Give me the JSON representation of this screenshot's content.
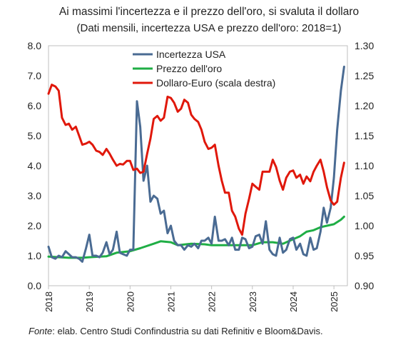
{
  "title": "Ai massimi l'incertezza e il prezzo dell'oro, si svaluta il dollaro",
  "subtitle": "(Dati mensili, incertezza USA e prezzo dell'oro: 2018=1)",
  "source": {
    "label": "Fonte",
    "text": ": elab. Centro Studi Confindustria su dati Refinitiv e Bloom&Davis."
  },
  "chart_data": {
    "type": "line",
    "x_ticks": [
      "2018",
      "2019",
      "2020",
      "2021",
      "2022",
      "2023",
      "2024",
      "2025"
    ],
    "x_range": [
      2018.0,
      2025.33
    ],
    "y_left": {
      "ylim": [
        0.0,
        8.0
      ],
      "ticks": [
        "0.0",
        "1.0",
        "2.0",
        "3.0",
        "4.0",
        "5.0",
        "6.0",
        "7.0",
        "8.0"
      ]
    },
    "y_right": {
      "ylim": [
        0.9,
        1.3
      ],
      "ticks": [
        "0.90",
        "0.95",
        "1.00",
        "1.05",
        "1.10",
        "1.15",
        "1.20",
        "1.25",
        "1.30"
      ]
    },
    "grid": false,
    "legend_position": "top-center",
    "series": [
      {
        "name": "Incertezza USA",
        "axis": "left",
        "color": "#4a6b93",
        "x": [
          2018.0,
          2018.08,
          2018.17,
          2018.25,
          2018.33,
          2018.42,
          2018.5,
          2018.58,
          2018.67,
          2018.75,
          2018.83,
          2018.92,
          2019.0,
          2019.08,
          2019.17,
          2019.25,
          2019.33,
          2019.42,
          2019.5,
          2019.58,
          2019.67,
          2019.75,
          2019.83,
          2019.92,
          2020.0,
          2020.08,
          2020.17,
          2020.25,
          2020.33,
          2020.42,
          2020.5,
          2020.58,
          2020.67,
          2020.75,
          2020.83,
          2020.92,
          2021.0,
          2021.08,
          2021.17,
          2021.25,
          2021.33,
          2021.42,
          2021.5,
          2021.58,
          2021.67,
          2021.75,
          2021.83,
          2021.92,
          2022.0,
          2022.08,
          2022.17,
          2022.25,
          2022.33,
          2022.42,
          2022.5,
          2022.58,
          2022.67,
          2022.75,
          2022.83,
          2022.92,
          2023.0,
          2023.08,
          2023.17,
          2023.25,
          2023.33,
          2023.42,
          2023.5,
          2023.58,
          2023.67,
          2023.75,
          2023.83,
          2023.92,
          2024.0,
          2024.08,
          2024.17,
          2024.25,
          2024.33,
          2024.42,
          2024.5,
          2024.58,
          2024.67,
          2024.75,
          2024.83,
          2024.92,
          2025.0,
          2025.08,
          2025.17,
          2025.25
        ],
        "values": [
          1.3,
          0.95,
          0.9,
          1.0,
          0.95,
          1.15,
          1.05,
          0.95,
          0.95,
          0.9,
          0.8,
          1.25,
          1.7,
          1.0,
          1.0,
          0.95,
          1.1,
          1.45,
          1.05,
          1.2,
          1.8,
          1.1,
          1.05,
          1.0,
          1.2,
          1.2,
          6.15,
          5.3,
          3.5,
          4.0,
          2.8,
          3.0,
          2.9,
          2.4,
          2.5,
          1.75,
          2.0,
          1.5,
          1.35,
          1.35,
          1.2,
          1.35,
          1.3,
          1.4,
          1.25,
          1.5,
          1.5,
          1.6,
          1.4,
          2.3,
          1.5,
          1.5,
          1.55,
          1.35,
          1.6,
          1.2,
          1.2,
          1.6,
          1.55,
          1.25,
          1.3,
          1.65,
          1.7,
          1.4,
          2.15,
          1.2,
          1.05,
          1.0,
          1.6,
          1.1,
          1.2,
          1.55,
          1.6,
          1.2,
          1.4,
          1.05,
          1.0,
          1.6,
          1.2,
          1.25,
          1.8,
          2.6,
          2.1,
          2.6,
          3.6,
          5.2,
          6.5,
          7.3
        ]
      },
      {
        "name": "Prezzo dell'oro",
        "axis": "left",
        "color": "#1fae45",
        "x": [
          2018.0,
          2018.5,
          2018.83,
          2019.0,
          2019.42,
          2019.67,
          2020.0,
          2020.25,
          2020.58,
          2020.75,
          2021.0,
          2021.17,
          2021.5,
          2021.83,
          2022.0,
          2022.25,
          2022.67,
          2023.0,
          2023.25,
          2023.5,
          2023.75,
          2024.0,
          2024.17,
          2024.33,
          2024.5,
          2024.67,
          2024.83,
          2025.0,
          2025.17,
          2025.25
        ],
        "values": [
          0.97,
          0.93,
          0.93,
          0.95,
          0.98,
          1.1,
          1.15,
          1.25,
          1.4,
          1.48,
          1.45,
          1.35,
          1.4,
          1.38,
          1.35,
          1.35,
          1.35,
          1.35,
          1.45,
          1.45,
          1.4,
          1.55,
          1.65,
          1.8,
          1.85,
          1.95,
          2.0,
          2.05,
          2.2,
          2.3
        ]
      },
      {
        "name": "Dollaro-Euro (scala destra)",
        "axis": "right",
        "color": "#e0180b",
        "x": [
          2018.0,
          2018.08,
          2018.17,
          2018.25,
          2018.33,
          2018.42,
          2018.5,
          2018.58,
          2018.67,
          2018.75,
          2018.83,
          2018.92,
          2019.0,
          2019.08,
          2019.17,
          2019.25,
          2019.33,
          2019.42,
          2019.5,
          2019.58,
          2019.67,
          2019.75,
          2019.83,
          2019.92,
          2020.0,
          2020.08,
          2020.17,
          2020.25,
          2020.33,
          2020.42,
          2020.5,
          2020.58,
          2020.67,
          2020.75,
          2020.83,
          2020.92,
          2021.0,
          2021.08,
          2021.17,
          2021.25,
          2021.33,
          2021.42,
          2021.5,
          2021.58,
          2021.67,
          2021.75,
          2021.83,
          2021.92,
          2022.0,
          2022.08,
          2022.17,
          2022.25,
          2022.33,
          2022.42,
          2022.5,
          2022.58,
          2022.67,
          2022.75,
          2022.83,
          2022.92,
          2023.0,
          2023.08,
          2023.17,
          2023.25,
          2023.33,
          2023.42,
          2023.5,
          2023.58,
          2023.67,
          2023.75,
          2023.83,
          2023.92,
          2024.0,
          2024.08,
          2024.17,
          2024.25,
          2024.33,
          2024.42,
          2024.5,
          2024.58,
          2024.67,
          2024.75,
          2024.83,
          2024.92,
          2025.0,
          2025.08,
          2025.17,
          2025.25
        ],
        "values": [
          1.22,
          1.235,
          1.232,
          1.225,
          1.18,
          1.168,
          1.17,
          1.16,
          1.165,
          1.15,
          1.135,
          1.137,
          1.14,
          1.135,
          1.125,
          1.123,
          1.118,
          1.128,
          1.12,
          1.11,
          1.1,
          1.103,
          1.102,
          1.108,
          1.108,
          1.093,
          1.095,
          1.088,
          1.09,
          1.12,
          1.145,
          1.178,
          1.183,
          1.175,
          1.18,
          1.215,
          1.213,
          1.205,
          1.19,
          1.195,
          1.21,
          1.205,
          1.185,
          1.178,
          1.173,
          1.16,
          1.14,
          1.128,
          1.13,
          1.135,
          1.1,
          1.075,
          1.055,
          1.055,
          1.025,
          1.015,
          0.995,
          0.985,
          1.02,
          1.045,
          1.07,
          1.065,
          1.06,
          1.09,
          1.09,
          1.09,
          1.11,
          1.098,
          1.075,
          1.06,
          1.08,
          1.09,
          1.092,
          1.08,
          1.085,
          1.07,
          1.082,
          1.074,
          1.09,
          1.1,
          1.11,
          1.09,
          1.064,
          1.042,
          1.035,
          1.04,
          1.08,
          1.105
        ]
      }
    ]
  }
}
